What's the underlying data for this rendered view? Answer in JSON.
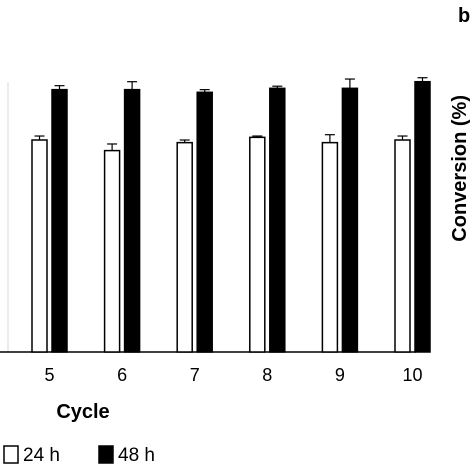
{
  "panel_letter": "b",
  "right_axis_label": "Conversion (%)",
  "chart_data": {
    "type": "bar",
    "xlabel": "Cycle",
    "ylabel": "",
    "categories": [
      "5",
      "6",
      "7",
      "8",
      "9",
      "10"
    ],
    "ylim": [
      0,
      100
    ],
    "grid": false,
    "legend_position": "bottom",
    "series": [
      {
        "name": "24 h",
        "fill": "#ffffff",
        "stroke": "#000000",
        "values": [
          80,
          76,
          79,
          81,
          79,
          80
        ],
        "errors": [
          1.5,
          2.5,
          1.0,
          0.5,
          3.0,
          1.5
        ]
      },
      {
        "name": "48 h",
        "fill": "#000000",
        "stroke": "#000000",
        "values": [
          99,
          99,
          98,
          99.5,
          99.5,
          102
        ],
        "errors": [
          1.5,
          3.0,
          1.0,
          0.8,
          3.5,
          1.5
        ]
      }
    ]
  }
}
